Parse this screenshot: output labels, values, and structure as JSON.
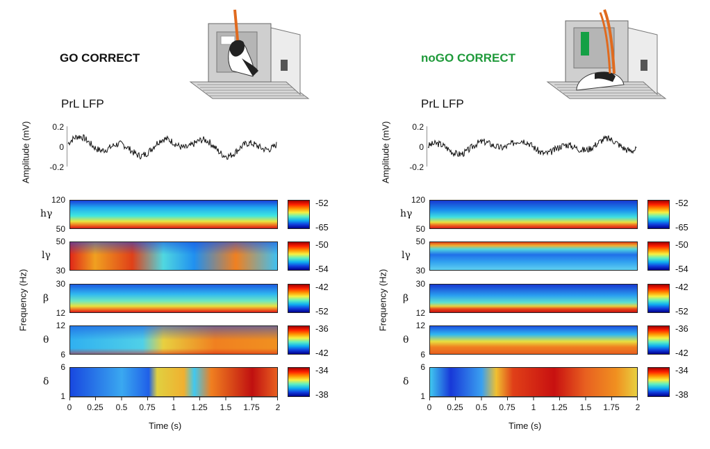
{
  "colors": {
    "go_title": "#111111",
    "nogo_title": "#1f9a3a",
    "cue_green": "#14a045",
    "lever": "#e06a1e"
  },
  "shared": {
    "lfp_label": "PrL LFP",
    "amplitude_axis_label": "Amplitude (mV)",
    "amplitude_ticks": [
      "0.2",
      "0",
      "-0.2"
    ],
    "frequency_axis_label": "Frequency (Hz)",
    "time_axis_label": "Time (s)",
    "time_ticks": [
      "0",
      "0.25",
      "0.5",
      "0.75",
      "1",
      "1.25",
      "1.5",
      "1.75",
      "2"
    ],
    "bands": [
      {
        "symbol": "hγ",
        "range": [
          "120",
          "50"
        ]
      },
      {
        "symbol": "lγ",
        "range": [
          "50",
          "30"
        ]
      },
      {
        "symbol": "β",
        "range": [
          "30",
          "12"
        ]
      },
      {
        "symbol": "θ",
        "range": [
          "12",
          "6"
        ]
      },
      {
        "symbol": "δ",
        "range": [
          "6",
          "1"
        ]
      }
    ],
    "colorbar_ranges": [
      [
        "-52",
        "-65"
      ],
      [
        "-50",
        "-54"
      ],
      [
        "-42",
        "-52"
      ],
      [
        "-36",
        "-42"
      ],
      [
        "-34",
        "-38"
      ]
    ]
  },
  "go": {
    "title": "GO CORRECT",
    "cue": "white rectangle",
    "illustration": "rat rearing with paw on lever"
  },
  "nogo": {
    "title": "noGO CORRECT",
    "cue": "green bar",
    "illustration": "rat resting on grid floor"
  }
}
